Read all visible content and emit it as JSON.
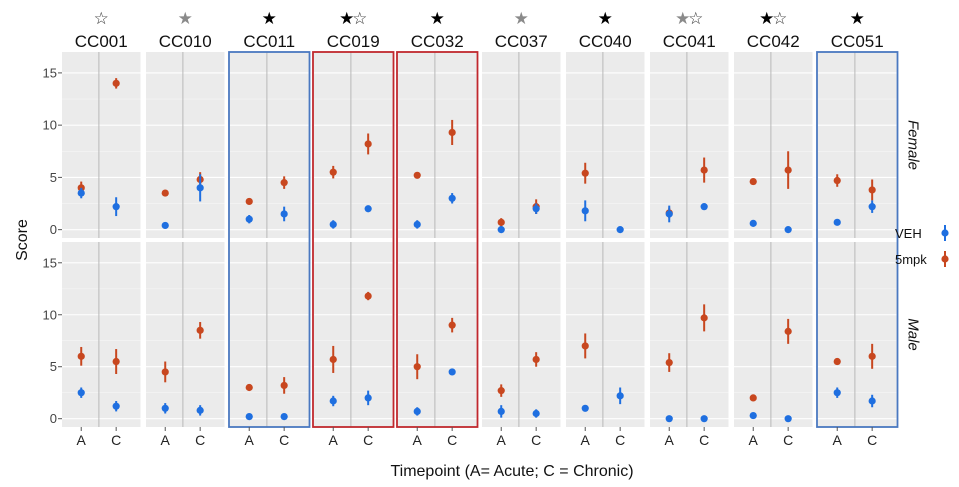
{
  "chart_data": {
    "type": "scatter",
    "ylabel": "Score",
    "xlabel": "Timepoint (A= Acute; C = Chronic)",
    "x_categories": [
      "A",
      "C"
    ],
    "ylim": [
      -0.8,
      17
    ],
    "y_ticks": [
      "0",
      "5",
      "10",
      "15"
    ],
    "facet_rows": [
      "Female",
      "Male"
    ],
    "legend": [
      {
        "label": "VEH",
        "color": "#1f6fe0"
      },
      {
        "label": "5mpk",
        "color": "#c8471f"
      }
    ],
    "colors": {
      "VEH": "#1f6fe0",
      "5mpk": "#c8471f",
      "filled_star": "#000000",
      "grey_star": "#8a8a8a",
      "outline_star": "#333333",
      "blue_box": "#4a78c0",
      "red_box": "#c0282e"
    },
    "strains": [
      {
        "name": "CC001",
        "stars": [
          "outline"
        ],
        "box": "none",
        "Female": {
          "VEH": [
            [
              3.5,
              0.5
            ],
            [
              2.2,
              0.9
            ]
          ],
          "5mpk": [
            [
              4.0,
              0.6
            ],
            [
              14.0,
              0.5
            ]
          ]
        },
        "Male": {
          "VEH": [
            [
              2.5,
              0.5
            ],
            [
              1.2,
              0.5
            ]
          ],
          "5mpk": [
            [
              6.0,
              0.9
            ],
            [
              5.5,
              1.2
            ]
          ]
        }
      },
      {
        "name": "CC010",
        "stars": [
          "grey"
        ],
        "box": "none",
        "Female": {
          "VEH": [
            [
              0.4,
              0.3
            ],
            [
              4.0,
              1.3
            ]
          ],
          "5mpk": [
            [
              3.5,
              0.3
            ],
            [
              4.8,
              0.7
            ]
          ]
        },
        "Male": {
          "VEH": [
            [
              1.0,
              0.5
            ],
            [
              0.8,
              0.5
            ]
          ],
          "5mpk": [
            [
              4.5,
              1.0
            ],
            [
              8.5,
              0.8
            ]
          ]
        }
      },
      {
        "name": "CC011",
        "stars": [
          "filled"
        ],
        "box": "blue",
        "Female": {
          "VEH": [
            [
              1.0,
              0.4
            ],
            [
              1.5,
              0.7
            ]
          ],
          "5mpk": [
            [
              2.7,
              0.3
            ],
            [
              4.5,
              0.6
            ]
          ]
        },
        "Male": {
          "VEH": [
            [
              0.2,
              0.2
            ],
            [
              0.2,
              0.2
            ]
          ],
          "5mpk": [
            [
              3.0,
              0.3
            ],
            [
              3.2,
              0.8
            ]
          ]
        }
      },
      {
        "name": "CC019",
        "stars": [
          "filled",
          "outline"
        ],
        "box": "red",
        "Female": {
          "VEH": [
            [
              0.5,
              0.4
            ],
            [
              2.0,
              0.2
            ]
          ],
          "5mpk": [
            [
              5.5,
              0.6
            ],
            [
              8.2,
              1.0
            ]
          ]
        },
        "Male": {
          "VEH": [
            [
              1.7,
              0.5
            ],
            [
              2.0,
              0.7
            ]
          ],
          "5mpk": [
            [
              5.7,
              1.3
            ],
            [
              11.8,
              0.4
            ]
          ]
        }
      },
      {
        "name": "CC032",
        "stars": [
          "filled"
        ],
        "box": "red",
        "Female": {
          "VEH": [
            [
              0.5,
              0.4
            ],
            [
              3.0,
              0.5
            ]
          ],
          "5mpk": [
            [
              5.2,
              0.2
            ],
            [
              9.3,
              1.2
            ]
          ]
        },
        "Male": {
          "VEH": [
            [
              0.7,
              0.4
            ],
            [
              4.5,
              0.3
            ]
          ],
          "5mpk": [
            [
              5.0,
              1.2
            ],
            [
              9.0,
              0.7
            ]
          ]
        }
      },
      {
        "name": "CC037",
        "stars": [
          "grey"
        ],
        "box": "none",
        "Female": {
          "VEH": [
            [
              0.0,
              0.2
            ],
            [
              2.0,
              0.5
            ]
          ],
          "5mpk": [
            [
              0.7,
              0.4
            ],
            [
              2.2,
              0.7
            ]
          ]
        },
        "Male": {
          "VEH": [
            [
              0.7,
              0.6
            ],
            [
              0.5,
              0.4
            ]
          ],
          "5mpk": [
            [
              2.7,
              0.6
            ],
            [
              5.7,
              0.7
            ]
          ]
        }
      },
      {
        "name": "CC040",
        "stars": [
          "filled"
        ],
        "box": "none",
        "Female": {
          "VEH": [
            [
              1.8,
              1.0
            ],
            [
              0.0,
              0.1
            ]
          ],
          "5mpk": [
            [
              5.4,
              1.0
            ],
            [
              null,
              null
            ]
          ]
        },
        "Male": {
          "VEH": [
            [
              1.0,
              0.3
            ],
            [
              2.2,
              0.8
            ]
          ],
          "5mpk": [
            [
              7.0,
              1.2
            ],
            [
              null,
              null
            ]
          ]
        }
      },
      {
        "name": "CC041",
        "stars": [
          "grey",
          "outline"
        ],
        "box": "none",
        "Female": {
          "VEH": [
            [
              1.5,
              0.8
            ],
            [
              2.2,
              0.2
            ]
          ],
          "5mpk": [
            [
              1.6,
              0.5
            ],
            [
              5.7,
              1.2
            ]
          ]
        },
        "Male": {
          "VEH": [
            [
              0.0,
              0.1
            ],
            [
              0.0,
              0.1
            ]
          ],
          "5mpk": [
            [
              5.4,
              0.9
            ],
            [
              9.7,
              1.3
            ]
          ]
        }
      },
      {
        "name": "CC042",
        "stars": [
          "filled",
          "outline"
        ],
        "box": "none",
        "Female": {
          "VEH": [
            [
              0.6,
              0.2
            ],
            [
              0.0,
              0.1
            ]
          ],
          "5mpk": [
            [
              4.6,
              0.2
            ],
            [
              5.7,
              1.8
            ]
          ]
        },
        "Male": {
          "VEH": [
            [
              0.3,
              0.2
            ],
            [
              0.0,
              0.1
            ]
          ],
          "5mpk": [
            [
              2.0,
              0.2
            ],
            [
              8.4,
              1.2
            ]
          ]
        }
      },
      {
        "name": "CC051",
        "stars": [
          "filled"
        ],
        "box": "blue",
        "Female": {
          "VEH": [
            [
              0.7,
              0.2
            ],
            [
              2.2,
              0.6
            ]
          ],
          "5mpk": [
            [
              4.7,
              0.6
            ],
            [
              3.8,
              1.0
            ]
          ]
        },
        "Male": {
          "VEH": [
            [
              2.5,
              0.5
            ],
            [
              1.7,
              0.6
            ]
          ],
          "5mpk": [
            [
              5.5,
              0.2
            ],
            [
              6.0,
              1.2
            ]
          ]
        }
      }
    ]
  }
}
